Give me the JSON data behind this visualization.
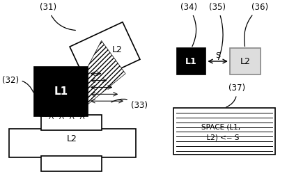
{
  "label_31": "(31)",
  "label_32": "(32)",
  "label_33": "(33)",
  "label_34": "(34)",
  "label_35": "(35)",
  "label_36": "(36)",
  "label_37": "(37)",
  "text_L1_left": "L1",
  "text_L2_upper": "L2",
  "text_L2_lower": "L2",
  "text_L1_right": "L1",
  "text_L2_right": "L2",
  "text_S": "S",
  "text_space1": "SPACE (L1,",
  "text_space2": "  L2) <= S"
}
